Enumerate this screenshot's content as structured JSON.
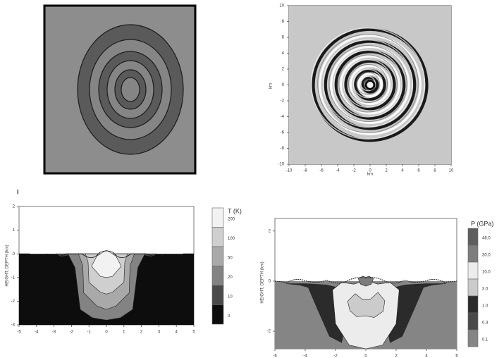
{
  "figure": {
    "panel_letter": "I"
  },
  "chart_data": [
    {
      "type": "heatmap",
      "panel": "top-left",
      "title": "",
      "rings": [
        {
          "fill": "#5a5a5a",
          "rx": 75,
          "ry": 92
        },
        {
          "fill": "#858585",
          "rx": 58,
          "ry": 71
        },
        {
          "fill": "#5a5a5a",
          "rx": 45,
          "ry": 54
        },
        {
          "fill": "#858585",
          "rx": 33,
          "ry": 41
        },
        {
          "fill": "#5a5a5a",
          "rx": 22,
          "ry": 28
        },
        {
          "fill": "#858585",
          "rx": 13,
          "ry": 17
        }
      ]
    },
    {
      "type": "heatmap",
      "panel": "top-right",
      "title": "",
      "xlabel": "km",
      "ylabel": "km",
      "xlim": [
        -10,
        10
      ],
      "ylim": [
        -10,
        10
      ],
      "xticks": [
        "-10",
        "-8",
        "-6",
        "-4",
        "-2",
        "0",
        "2",
        "4",
        "6",
        "8",
        "10"
      ],
      "yticks": [
        "10",
        "8",
        "6",
        "4",
        "2",
        "0",
        "-2",
        "-4",
        "-6",
        "-8",
        "-10"
      ],
      "rings_km": [
        0.5,
        0.9,
        1.4,
        1.8,
        2.4,
        3.0,
        3.6,
        4.2,
        4.8,
        5.5,
        6.2,
        7.0
      ]
    },
    {
      "type": "heatmap",
      "panel": "bottom-left",
      "ylabel": "HEIGHT, DEPTH (km)",
      "xlabel": "",
      "xlim": [
        -5,
        5
      ],
      "ylim": [
        -3,
        2
      ],
      "xticks": [
        "-5",
        "-4",
        "-3",
        "-2",
        "-1",
        "0",
        "1",
        "2",
        "3",
        "4",
        "5"
      ],
      "yticks": [
        "2",
        "1",
        "0",
        "-1",
        "-2",
        "-3"
      ],
      "colorbar": {
        "title": "T (K)",
        "levels": [
          "200",
          "100",
          "50",
          "20",
          "10",
          "0"
        ],
        "colors": [
          "#f2f2f2",
          "#cfcfcf",
          "#a9a9a9",
          "#838383",
          "#4a4a4a",
          "#0d0d0d"
        ]
      }
    },
    {
      "type": "heatmap",
      "panel": "bottom-right",
      "ylabel": "HEIGHT, DEPTH (km)",
      "xlabel": "",
      "xticks": [
        "-6",
        "-4",
        "-2",
        "0",
        "2",
        "4",
        "6"
      ],
      "yticks": [
        "2",
        "0",
        "-2"
      ],
      "colorbar": {
        "title": "P (GPa)",
        "levels": [
          "46.0",
          "30.0",
          "10.0",
          "3.0",
          "1.0",
          "0.3",
          "0.1"
        ],
        "colors": [
          "#5e5e5e",
          "#7d7d7d",
          "#ececec",
          "#cbcbcb",
          "#2b2b2b",
          "#4a4a4a",
          "#858585"
        ]
      }
    }
  ]
}
